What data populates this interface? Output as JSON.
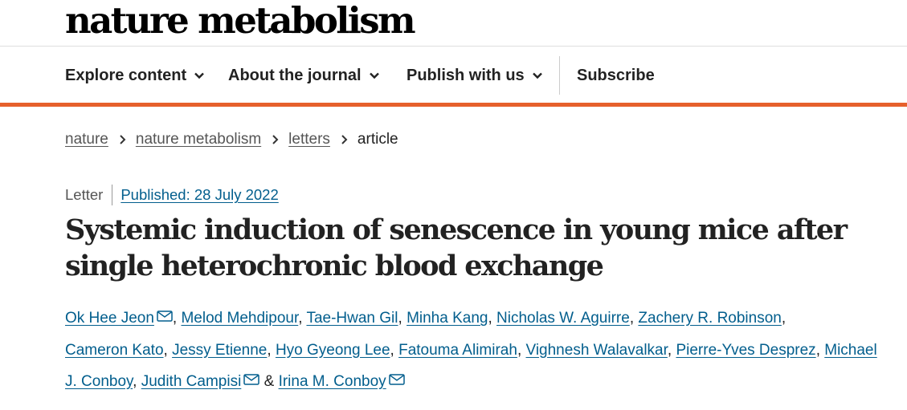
{
  "journal": {
    "name": "nature metabolism"
  },
  "nav": {
    "items": [
      {
        "label": "Explore content"
      },
      {
        "label": "About the journal"
      },
      {
        "label": "Publish with us"
      },
      {
        "label": "Subscribe"
      }
    ]
  },
  "breadcrumb": [
    "nature",
    "nature metabolism",
    "letters",
    "article"
  ],
  "article": {
    "type": "Letter",
    "published": "Published: 28 July 2022",
    "title": "Systemic induction of senescence in young mice after single heterochronic blood exchange",
    "authors": [
      "Ok Hee Jeon",
      "Melod Mehdipour",
      "Tae-Hwan Gil",
      "Minha Kang",
      "Nicholas W. Aguirre",
      "Zachery R. Robinson",
      "Cameron Kato",
      "Jessy Etienne",
      "Hyo Gyeong Lee",
      "Fatouma Alimirah",
      "Vighnesh Walavalkar",
      "Pierre-Yves Desprez",
      "Michael J. Conboy",
      "Judith Campisi",
      "Irina M. Conboy"
    ],
    "ampersand": "&"
  },
  "colors": {
    "accent": "#e6602c",
    "link": "#025e8d"
  },
  "icons": {
    "nav_chevron": "chevron-down-icon",
    "breadcrumb_sep": "chevron-right-icon",
    "corresponding": "envelope-icon"
  }
}
